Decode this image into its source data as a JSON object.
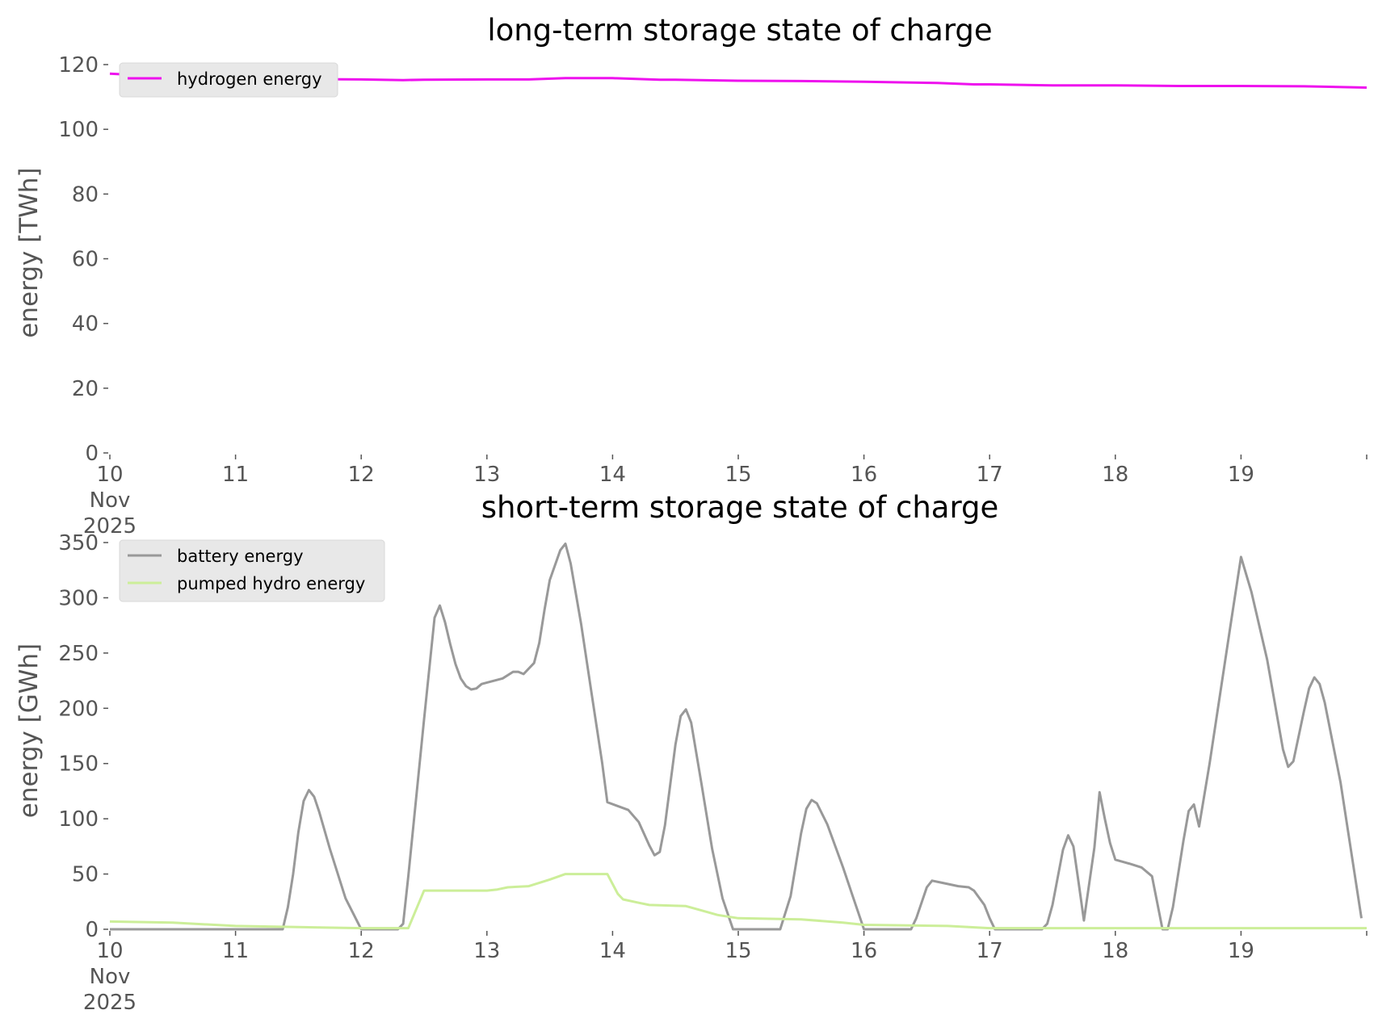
{
  "chart_data": [
    {
      "type": "line",
      "title": "long-term storage state of charge",
      "ylabel": "energy [TWh]",
      "xlabel": "",
      "ylim": [
        0,
        120
      ],
      "yticks": [
        0,
        20,
        40,
        60,
        80,
        100,
        120
      ],
      "xlim": [
        "2025-11-10 00:00",
        "2025-11-20 00:00"
      ],
      "x_tick_labels": [
        "10\nNov\n2025",
        "11",
        "12",
        "13",
        "14",
        "15",
        "16",
        "17",
        "18",
        "19"
      ],
      "grid": false,
      "legend_position": "upper-left",
      "series": [
        {
          "name": "hydrogen energy",
          "color": "#ee11ee",
          "points": [
            [
              "2025-11-10 00:00",
              117.2
            ],
            [
              "2025-11-10 12:00",
              116.2
            ],
            [
              "2025-11-11 00:00",
              115.8
            ],
            [
              "2025-11-11 12:00",
              115.5
            ],
            [
              "2025-11-12 00:00",
              115.4
            ],
            [
              "2025-11-12 08:00",
              115.2
            ],
            [
              "2025-11-12 12:00",
              115.3
            ],
            [
              "2025-11-13 00:00",
              115.4
            ],
            [
              "2025-11-13 08:00",
              115.4
            ],
            [
              "2025-11-13 15:00",
              115.8
            ],
            [
              "2025-11-14 00:00",
              115.8
            ],
            [
              "2025-11-14 09:00",
              115.3
            ],
            [
              "2025-11-14 12:00",
              115.3
            ],
            [
              "2025-11-15 00:00",
              115.0
            ],
            [
              "2025-11-15 12:00",
              114.9
            ],
            [
              "2025-11-16 00:00",
              114.7
            ],
            [
              "2025-11-16 14:00",
              114.3
            ],
            [
              "2025-11-16 21:00",
              113.9
            ],
            [
              "2025-11-17 00:00",
              113.9
            ],
            [
              "2025-11-17 12:00",
              113.6
            ],
            [
              "2025-11-18 00:00",
              113.6
            ],
            [
              "2025-11-18 12:00",
              113.4
            ],
            [
              "2025-11-19 00:00",
              113.4
            ],
            [
              "2025-11-19 12:00",
              113.3
            ],
            [
              "2025-11-20 00:00",
              112.9
            ]
          ]
        }
      ]
    },
    {
      "type": "line",
      "title": "short-term storage state of charge",
      "ylabel": "energy [GWh]",
      "xlabel": "",
      "ylim": [
        0,
        350
      ],
      "yticks": [
        0,
        50,
        100,
        150,
        200,
        250,
        300,
        350
      ],
      "xlim": [
        "2025-11-10 00:00",
        "2025-11-20 00:00"
      ],
      "x_tick_labels": [
        "10\nNov\n2025",
        "11",
        "12",
        "13",
        "14",
        "15",
        "16",
        "17",
        "18",
        "19"
      ],
      "grid": false,
      "legend_position": "upper-left",
      "series": [
        {
          "name": "battery energy",
          "color": "#999999",
          "points": [
            [
              "2025-11-10 00:00",
              0
            ],
            [
              "2025-11-11 09:00",
              0
            ],
            [
              "2025-11-11 10:00",
              20
            ],
            [
              "2025-11-11 11:00",
              50
            ],
            [
              "2025-11-11 12:00",
              88
            ],
            [
              "2025-11-11 13:00",
              116
            ],
            [
              "2025-11-11 14:00",
              126
            ],
            [
              "2025-11-11 15:00",
              120
            ],
            [
              "2025-11-11 16:00",
              106
            ],
            [
              "2025-11-11 18:00",
              73
            ],
            [
              "2025-11-11 21:00",
              28
            ],
            [
              "2025-11-12 00:00",
              0
            ],
            [
              "2025-11-12 07:00",
              0
            ],
            [
              "2025-11-12 08:00",
              5
            ],
            [
              "2025-11-12 09:00",
              48
            ],
            [
              "2025-11-12 12:00",
              190
            ],
            [
              "2025-11-12 14:00",
              282
            ],
            [
              "2025-11-12 15:00",
              293
            ],
            [
              "2025-11-12 16:00",
              278
            ],
            [
              "2025-11-12 17:00",
              258
            ],
            [
              "2025-11-12 18:00",
              240
            ],
            [
              "2025-11-12 19:00",
              227
            ],
            [
              "2025-11-12 20:00",
              220
            ],
            [
              "2025-11-12 21:00",
              217
            ],
            [
              "2025-11-12 22:00",
              218
            ],
            [
              "2025-11-12 23:00",
              222
            ],
            [
              "2025-11-13 03:00",
              227
            ],
            [
              "2025-11-13 05:00",
              233
            ],
            [
              "2025-11-13 06:00",
              233
            ],
            [
              "2025-11-13 07:00",
              231
            ],
            [
              "2025-11-13 09:00",
              241
            ],
            [
              "2025-11-13 10:00",
              259
            ],
            [
              "2025-11-13 11:00",
              289
            ],
            [
              "2025-11-13 12:00",
              316
            ],
            [
              "2025-11-13 14:00",
              343
            ],
            [
              "2025-11-13 15:00",
              349
            ],
            [
              "2025-11-13 16:00",
              331
            ],
            [
              "2025-11-13 18:00",
              276
            ],
            [
              "2025-11-13 20:00",
              213
            ],
            [
              "2025-11-13 22:00",
              151
            ],
            [
              "2025-11-13 23:00",
              115
            ],
            [
              "2025-11-14 03:00",
              108
            ],
            [
              "2025-11-14 05:00",
              97
            ],
            [
              "2025-11-14 07:00",
              76
            ],
            [
              "2025-11-14 08:00",
              67
            ],
            [
              "2025-11-14 09:00",
              70
            ],
            [
              "2025-11-14 10:00",
              94
            ],
            [
              "2025-11-14 12:00",
              167
            ],
            [
              "2025-11-14 13:00",
              193
            ],
            [
              "2025-11-14 14:00",
              199
            ],
            [
              "2025-11-14 15:00",
              187
            ],
            [
              "2025-11-14 17:00",
              131
            ],
            [
              "2025-11-14 19:00",
              73
            ],
            [
              "2025-11-14 21:00",
              28
            ],
            [
              "2025-11-14 23:00",
              0
            ],
            [
              "2025-11-15 08:00",
              0
            ],
            [
              "2025-11-15 10:00",
              30
            ],
            [
              "2025-11-15 12:00",
              87
            ],
            [
              "2025-11-15 13:00",
              109
            ],
            [
              "2025-11-15 14:00",
              117
            ],
            [
              "2025-11-15 15:00",
              114
            ],
            [
              "2025-11-15 17:00",
              95
            ],
            [
              "2025-11-15 20:00",
              56
            ],
            [
              "2025-11-15 22:00",
              28
            ],
            [
              "2025-11-16 00:00",
              0
            ],
            [
              "2025-11-16 09:00",
              0
            ],
            [
              "2025-11-16 10:00",
              10
            ],
            [
              "2025-11-16 12:00",
              38
            ],
            [
              "2025-11-16 13:00",
              44
            ],
            [
              "2025-11-16 15:00",
              42
            ],
            [
              "2025-11-16 18:00",
              39
            ],
            [
              "2025-11-16 20:00",
              38
            ],
            [
              "2025-11-16 21:00",
              35
            ],
            [
              "2025-11-16 23:00",
              22
            ],
            [
              "2025-11-17 00:00",
              10
            ],
            [
              "2025-11-17 01:00",
              0
            ],
            [
              "2025-11-17 10:00",
              0
            ],
            [
              "2025-11-17 11:00",
              5
            ],
            [
              "2025-11-17 12:00",
              22
            ],
            [
              "2025-11-17 14:00",
              72
            ],
            [
              "2025-11-17 15:00",
              85
            ],
            [
              "2025-11-17 16:00",
              75
            ],
            [
              "2025-11-17 17:00",
              42
            ],
            [
              "2025-11-17 18:00",
              8
            ],
            [
              "2025-11-17 20:00",
              74
            ],
            [
              "2025-11-17 21:00",
              124
            ],
            [
              "2025-11-17 22:00",
              100
            ],
            [
              "2025-11-17 23:00",
              78
            ],
            [
              "2025-11-18 00:00",
              63
            ],
            [
              "2025-11-18 03:00",
              59
            ],
            [
              "2025-11-18 05:00",
              56
            ],
            [
              "2025-11-18 07:00",
              48
            ],
            [
              "2025-11-18 09:00",
              0
            ],
            [
              "2025-11-18 10:00",
              0
            ],
            [
              "2025-11-18 11:00",
              20
            ],
            [
              "2025-11-18 13:00",
              80
            ],
            [
              "2025-11-18 14:00",
              107
            ],
            [
              "2025-11-18 15:00",
              113
            ],
            [
              "2025-11-18 16:00",
              93
            ],
            [
              "2025-11-18 18:00",
              150
            ],
            [
              "2025-11-18 22:00",
              275
            ],
            [
              "2025-11-19 00:00",
              337
            ],
            [
              "2025-11-19 02:00",
              305
            ],
            [
              "2025-11-19 05:00",
              244
            ],
            [
              "2025-11-19 07:00",
              190
            ],
            [
              "2025-11-19 08:00",
              163
            ],
            [
              "2025-11-19 09:00",
              147
            ],
            [
              "2025-11-19 10:00",
              152
            ],
            [
              "2025-11-19 12:00",
              197
            ],
            [
              "2025-11-19 13:00",
              218
            ],
            [
              "2025-11-19 14:00",
              228
            ],
            [
              "2025-11-19 15:00",
              222
            ],
            [
              "2025-11-19 16:00",
              205
            ],
            [
              "2025-11-19 19:00",
              133
            ],
            [
              "2025-11-19 23:00",
              10
            ]
          ]
        },
        {
          "name": "pumped hydro energy",
          "color": "#ccee99",
          "points": [
            [
              "2025-11-10 00:00",
              7
            ],
            [
              "2025-11-10 12:00",
              6
            ],
            [
              "2025-11-11 00:00",
              3
            ],
            [
              "2025-11-12 00:00",
              1
            ],
            [
              "2025-11-12 09:00",
              1
            ],
            [
              "2025-11-12 12:00",
              35
            ],
            [
              "2025-11-13 00:00",
              35
            ],
            [
              "2025-11-13 02:00",
              36
            ],
            [
              "2025-11-13 04:00",
              38
            ],
            [
              "2025-11-13 08:00",
              39
            ],
            [
              "2025-11-13 12:00",
              45
            ],
            [
              "2025-11-13 15:00",
              50
            ],
            [
              "2025-11-13 23:00",
              50
            ],
            [
              "2025-11-14 01:00",
              32
            ],
            [
              "2025-11-14 02:00",
              27
            ],
            [
              "2025-11-14 05:00",
              24
            ],
            [
              "2025-11-14 07:00",
              22
            ],
            [
              "2025-11-14 14:00",
              21
            ],
            [
              "2025-11-14 17:00",
              17
            ],
            [
              "2025-11-14 20:00",
              13
            ],
            [
              "2025-11-15 00:00",
              10
            ],
            [
              "2025-11-15 12:00",
              9
            ],
            [
              "2025-11-15 20:00",
              6
            ],
            [
              "2025-11-16 00:00",
              4
            ],
            [
              "2025-11-16 16:00",
              3
            ],
            [
              "2025-11-17 00:00",
              1
            ],
            [
              "2025-11-20 00:00",
              1
            ]
          ]
        }
      ]
    }
  ]
}
